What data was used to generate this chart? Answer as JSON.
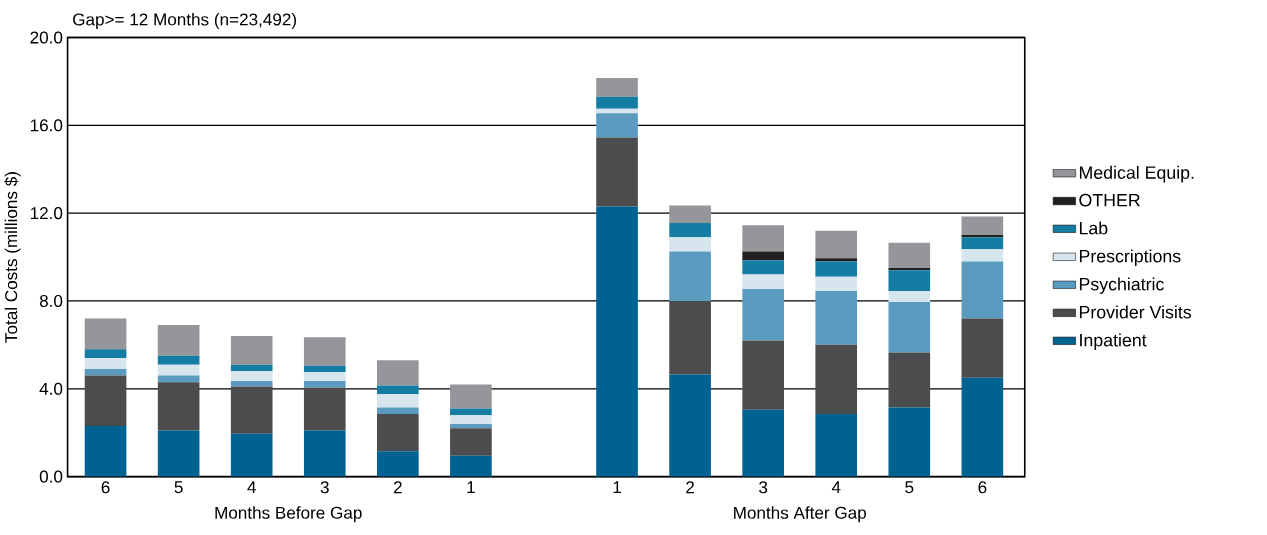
{
  "chart_data": {
    "type": "bar",
    "stacked": true,
    "title": "Gap>= 12 Months (n=23,492)",
    "ylabel": "Total Costs (millions $)",
    "categories": [
      "6",
      "5",
      "4",
      "3",
      "2",
      "1",
      null,
      "1",
      "2",
      "3",
      "4",
      "5",
      "6"
    ],
    "annotations": [
      "Months Before Gap",
      "Months After Gap"
    ],
    "series": [
      {
        "name": "Inpatient",
        "color": "#006290",
        "values": [
          2.3,
          2.1,
          1.95,
          2.1,
          1.15,
          0.95,
          null,
          12.3,
          4.65,
          3.05,
          2.85,
          3.15,
          4.5
        ]
      },
      {
        "name": "Provider Visits",
        "color": "#4b4c4e",
        "values": [
          2.3,
          2.2,
          2.15,
          1.95,
          1.7,
          1.25,
          null,
          3.15,
          3.35,
          3.15,
          3.15,
          2.5,
          2.7
        ]
      },
      {
        "name": "Psychiatric",
        "color": "#5b9bbf",
        "values": [
          0.3,
          0.3,
          0.25,
          0.3,
          0.3,
          0.2,
          null,
          1.1,
          2.25,
          2.35,
          2.45,
          2.3,
          2.6
        ]
      },
      {
        "name": "Prescriptions",
        "color": "#d7e5ef",
        "values": [
          0.5,
          0.5,
          0.45,
          0.4,
          0.6,
          0.4,
          null,
          0.2,
          0.65,
          0.65,
          0.65,
          0.5,
          0.55
        ]
      },
      {
        "name": "Lab",
        "color": "#157ca3",
        "values": [
          0.4,
          0.4,
          0.3,
          0.3,
          0.4,
          0.3,
          null,
          0.55,
          0.65,
          0.65,
          0.7,
          0.95,
          0.55
        ]
      },
      {
        "name": "OTHER",
        "color": "#231f20",
        "values": [
          0,
          0,
          0,
          0,
          0,
          0,
          null,
          0,
          0,
          0.4,
          0.15,
          0.1,
          0.1
        ]
      },
      {
        "name": "Medical Equip.",
        "color": "#959699",
        "values": [
          1.4,
          1.4,
          1.3,
          1.3,
          1.15,
          1.1,
          null,
          0.85,
          0.8,
          1.2,
          1.25,
          1.15,
          0.85
        ]
      }
    ],
    "ylim": [
      0,
      20
    ],
    "yticks": [
      {
        "value": 0,
        "label": "0.0"
      },
      {
        "value": 4,
        "label": "4.0"
      },
      {
        "value": 8,
        "label": "8.0"
      },
      {
        "value": 12,
        "label": "12.0"
      },
      {
        "value": 16,
        "label": "16.0"
      },
      {
        "value": 20,
        "label": "20.0"
      }
    ],
    "grid": "y",
    "legend": "right"
  }
}
